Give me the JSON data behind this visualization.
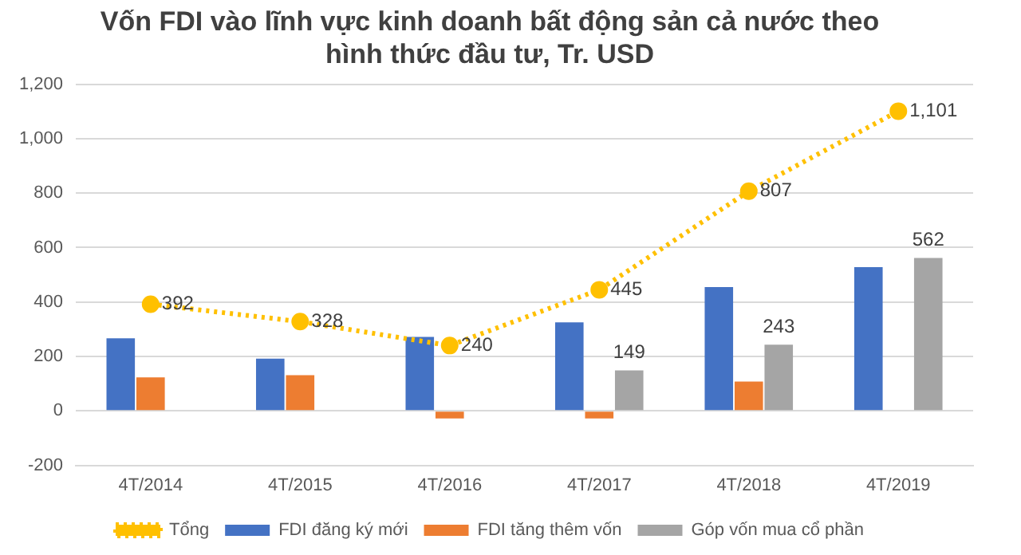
{
  "chart_data": {
    "type": "bar",
    "title": "Vốn FDI vào lĩnh vực kinh doanh bất động sản cả nước theo\nhình thức đầu tư, Tr. USD",
    "categories": [
      "4T/2014",
      "4T/2015",
      "4T/2016",
      "4T/2017",
      "4T/2018",
      "4T/2019"
    ],
    "series": [
      {
        "name": "FDI đăng ký mới",
        "color": "#4472c4",
        "values": [
          267,
          192,
          272,
          325,
          455,
          528
        ]
      },
      {
        "name": "FDI tăng thêm vốn",
        "color": "#ed7d31",
        "values": [
          123,
          131,
          -28,
          -28,
          108,
          null
        ]
      },
      {
        "name": "Góp vốn mua cổ phần",
        "color": "#a5a5a5",
        "values": [
          null,
          null,
          null,
          149,
          243,
          562
        ],
        "value_labels": [
          null,
          null,
          null,
          "149",
          "243",
          "562"
        ]
      },
      {
        "name": "Tổng",
        "type": "line",
        "color": "#ffc000",
        "marker": "circle",
        "line_style": "dotted",
        "values": [
          392,
          328,
          240,
          445,
          807,
          1101
        ],
        "value_labels": [
          "392",
          "328",
          "240",
          "445",
          "807",
          "1,101"
        ]
      }
    ],
    "ylim": [
      -200,
      1200
    ],
    "yticks": [
      -200,
      0,
      200,
      400,
      600,
      800,
      {
        "value": 1000,
        "label": "1,000"
      },
      {
        "value": 1200,
        "label": "1,200"
      }
    ],
    "grid": "y",
    "legend": "bottom"
  }
}
